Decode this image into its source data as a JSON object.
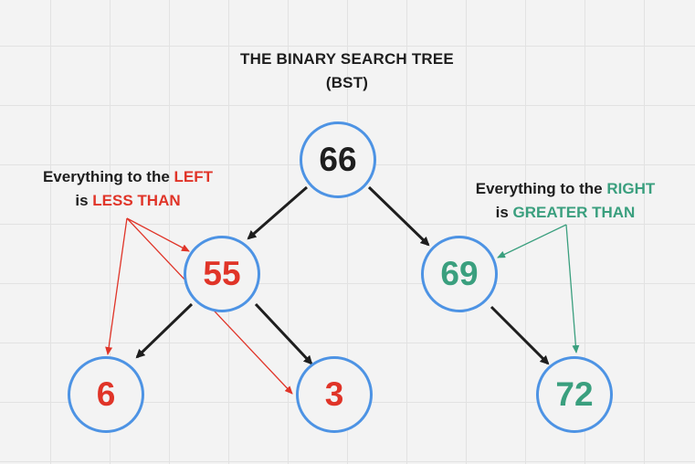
{
  "title": {
    "line1": "THE BINARY SEARCH TREE",
    "line2": "(BST)"
  },
  "notes": {
    "left": {
      "line1_prefix": "Everything to the ",
      "line1_highlight": "LEFT",
      "line2_prefix": "is ",
      "line2_highlight": "LESS THAN"
    },
    "right": {
      "line1_prefix": "Everything to the ",
      "line1_highlight": "RIGHT",
      "line2_prefix": "is ",
      "line2_highlight": "GREATER THAN"
    }
  },
  "nodes": {
    "root": "66",
    "left": "55",
    "right": "69",
    "left_left": "6",
    "left_right": "3",
    "right_right": "72"
  },
  "colors": {
    "less": "#e03428",
    "greater": "#3a9f7e",
    "neutral": "#1e1e1e",
    "node_border": "#4d93e4"
  }
}
